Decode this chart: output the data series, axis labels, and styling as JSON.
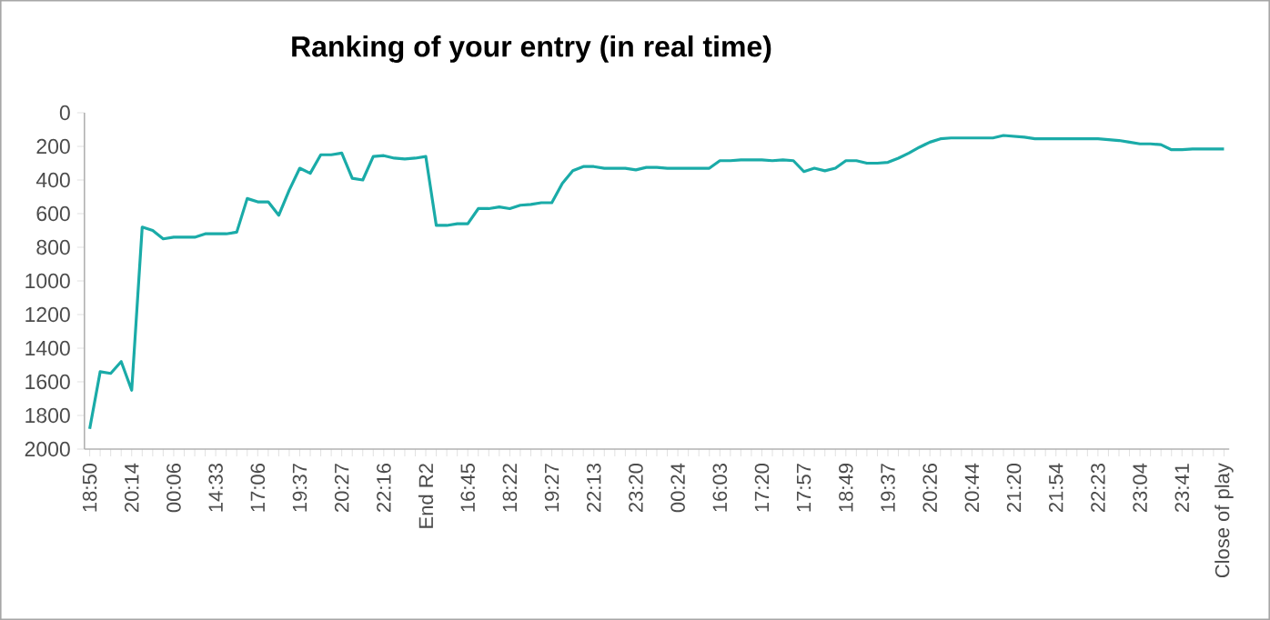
{
  "chart_data": {
    "type": "line",
    "title": "Ranking of your entry (in real time)",
    "categories": [
      "18:50",
      null,
      null,
      null,
      "20:14",
      null,
      null,
      null,
      "00:06",
      null,
      null,
      null,
      "14:33",
      null,
      null,
      null,
      "17:06",
      null,
      null,
      null,
      "19:37",
      null,
      null,
      null,
      "20:27",
      null,
      null,
      null,
      "22:16",
      null,
      null,
      null,
      "End R2",
      null,
      null,
      null,
      "16:45",
      null,
      null,
      null,
      "18:22",
      null,
      null,
      null,
      "19:27",
      null,
      null,
      null,
      "22:13",
      null,
      null,
      null,
      "23:20",
      null,
      null,
      null,
      "00:24",
      null,
      null,
      null,
      "16:03",
      null,
      null,
      null,
      "17:20",
      null,
      null,
      null,
      "17:57",
      null,
      null,
      null,
      "18:49",
      null,
      null,
      null,
      "19:37",
      null,
      null,
      null,
      "20:26",
      null,
      null,
      null,
      "20:44",
      null,
      null,
      null,
      "21:20",
      null,
      null,
      null,
      "21:54",
      null,
      null,
      null,
      "22:23",
      null,
      null,
      null,
      "23:04",
      null,
      null,
      null,
      "23:41",
      null,
      null,
      null,
      "Close of play"
    ],
    "series": [
      {
        "color": "#1aaba8",
        "values": [
          1880,
          1540,
          1550,
          1480,
          1650,
          680,
          700,
          750,
          740,
          740,
          740,
          720,
          720,
          720,
          710,
          510,
          530,
          530,
          610,
          460,
          330,
          360,
          250,
          250,
          240,
          390,
          400,
          260,
          255,
          270,
          275,
          270,
          260,
          670,
          670,
          660,
          660,
          570,
          570,
          560,
          570,
          550,
          545,
          535,
          535,
          420,
          345,
          320,
          320,
          330,
          330,
          330,
          340,
          325,
          325,
          330,
          330,
          330,
          330,
          330,
          285,
          285,
          280,
          280,
          280,
          285,
          280,
          285,
          350,
          330,
          345,
          330,
          285,
          285,
          300,
          300,
          295,
          270,
          240,
          205,
          175,
          155,
          150,
          150,
          150,
          150,
          150,
          135,
          140,
          145,
          155,
          155,
          155,
          155,
          155,
          155,
          155,
          160,
          165,
          175,
          185,
          185,
          190,
          220,
          220,
          215,
          215,
          215,
          215
        ]
      }
    ],
    "ylim": [
      2000,
      0
    ],
    "yticks": [
      0,
      200,
      400,
      600,
      800,
      1000,
      1200,
      1400,
      1600,
      1800,
      2000
    ],
    "grid": false,
    "legend": false,
    "marker": "none",
    "line_style": "solid"
  }
}
